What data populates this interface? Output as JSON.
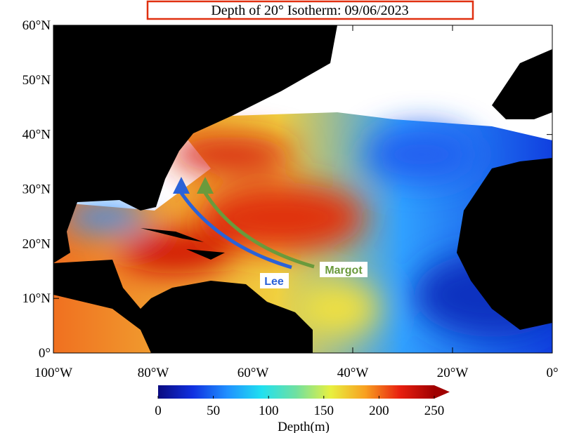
{
  "title": "Depth of 20° Isotherm: 09/06/2023",
  "map": {
    "lon_range": [
      -100,
      0
    ],
    "lat_range": [
      0,
      60
    ],
    "lat_ticks": [
      {
        "value": 0,
        "label": "0°"
      },
      {
        "value": 10,
        "label": "10°N"
      },
      {
        "value": 20,
        "label": "20°N"
      },
      {
        "value": 30,
        "label": "30°N"
      },
      {
        "value": 40,
        "label": "40°N"
      },
      {
        "value": 50,
        "label": "50°N"
      },
      {
        "value": 60,
        "label": "60°N"
      }
    ],
    "lon_ticks": [
      {
        "value": -100,
        "label": "100°W"
      },
      {
        "value": -80,
        "label": "80°W"
      },
      {
        "value": -60,
        "label": "60°W"
      },
      {
        "value": -40,
        "label": "40°W"
      },
      {
        "value": -20,
        "label": "20°W"
      },
      {
        "value": 0,
        "label": "0°"
      }
    ]
  },
  "colorbar": {
    "range": [
      0,
      250
    ],
    "ticks": [
      0,
      50,
      100,
      150,
      200,
      250
    ],
    "label": "Depth(m)",
    "colors": [
      "#0a0a80",
      "#1030e0",
      "#2090ff",
      "#20e0f0",
      "#70e0a0",
      "#e8f040",
      "#f8a020",
      "#e82010",
      "#a00000"
    ]
  },
  "storms": [
    {
      "name": "Lee",
      "color": "#2a62d8"
    },
    {
      "name": "Margot",
      "color": "#6a9a3c"
    }
  ]
}
